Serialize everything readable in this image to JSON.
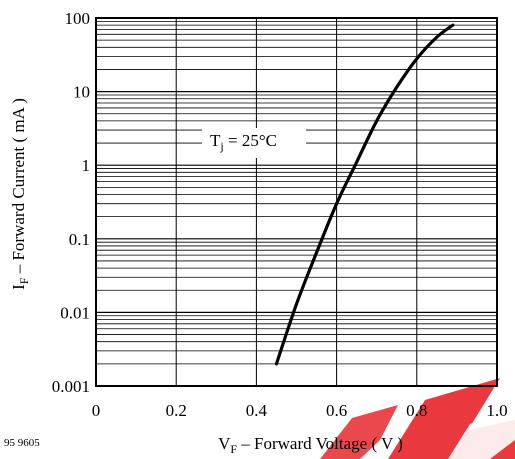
{
  "chart_data": {
    "type": "line",
    "xscale": "linear",
    "yscale": "log",
    "xlim": [
      0,
      1.0
    ],
    "ylim": [
      0.001,
      100
    ],
    "x_ticks": [
      "0",
      "0.2",
      "0.4",
      "0.6",
      "0.8",
      "1.0"
    ],
    "y_ticks": [
      "0.001",
      "0.01",
      "0.1",
      "1",
      "10",
      "100"
    ],
    "xlabel": {
      "symbol": "V",
      "subscript": "F",
      "text": " – Forward Voltage ( V )"
    },
    "ylabel": {
      "symbol": "I",
      "subscript": "F",
      "text": " – Forward Current ( mA )"
    },
    "annotation": {
      "symbol": "T",
      "subscript": "j",
      "text": " = 25°C"
    },
    "figure_code": "95 9605",
    "grid": true,
    "series": [
      {
        "x": [
          0.45,
          0.5,
          0.55,
          0.6,
          0.65,
          0.7,
          0.75,
          0.8,
          0.85,
          0.89
        ],
        "y": [
          0.002,
          0.013,
          0.065,
          0.3,
          1.1,
          4.0,
          11.5,
          28,
          55,
          80
        ]
      }
    ]
  },
  "colors": {
    "line": "#000000",
    "grid": "#000000",
    "watermark": "#e8282e"
  }
}
